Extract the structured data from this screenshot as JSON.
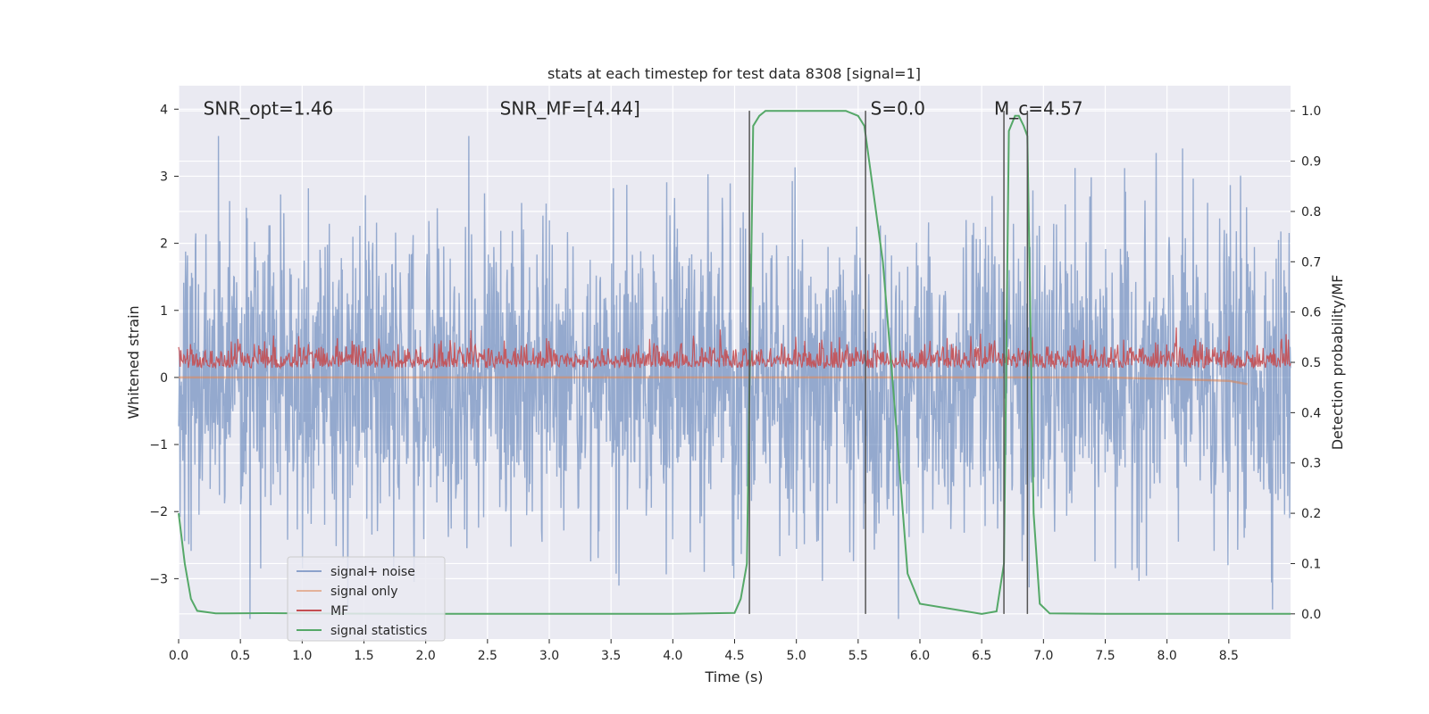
{
  "chart_data": {
    "type": "line",
    "title": "stats at each timestep for test data 8308 [signal=1]",
    "xlabel": "Time (s)",
    "ylabel_left": "Whitened strain",
    "ylabel_right": "Detection probability/MF",
    "xlim": [
      0.0,
      9.0
    ],
    "ylim_left": [
      -3.9,
      4.35
    ],
    "ylim_right": [
      -0.05,
      1.05
    ],
    "x_ticks": [
      0.0,
      0.5,
      1.0,
      1.5,
      2.0,
      2.5,
      3.0,
      3.5,
      4.0,
      4.5,
      5.0,
      5.5,
      6.0,
      6.5,
      7.0,
      7.5,
      8.0,
      8.5
    ],
    "x_tick_labels": [
      "0.0",
      "0.5",
      "1.0",
      "1.5",
      "2.0",
      "2.5",
      "3.0",
      "3.5",
      "4.0",
      "4.5",
      "5.0",
      "5.5",
      "6.0",
      "6.5",
      "7.0",
      "7.5",
      "8.0",
      "8.5"
    ],
    "y_left_ticks": [
      4,
      3,
      2,
      1,
      0,
      -1,
      -2,
      -3
    ],
    "y_left_tick_labels": [
      "4",
      "3",
      "2",
      "1",
      "0",
      "−1",
      "−2",
      "−3"
    ],
    "y_right_ticks": [
      1.0,
      0.9,
      0.8,
      0.7,
      0.6,
      0.5,
      0.4,
      0.3,
      0.2,
      0.1,
      0.0
    ],
    "y_right_tick_labels": [
      "1.0",
      "0.9",
      "0.8",
      "0.7",
      "0.6",
      "0.5",
      "0.4",
      "0.3",
      "0.2",
      "0.1",
      "0.0"
    ],
    "annotations": [
      {
        "text": "SNR_opt=1.46",
        "x": 0.2,
        "y": 4.0
      },
      {
        "text": "SNR_MF=[4.44]",
        "x": 2.6,
        "y": 4.0
      },
      {
        "text": "S=0.0",
        "x": 5.6,
        "y": 4.0
      },
      {
        "text": "M_c=4.57",
        "x": 6.6,
        "y": 4.0
      }
    ],
    "vertical_lines_x": [
      4.62,
      5.56,
      6.68,
      6.87
    ],
    "legend_location": "lower-left",
    "series": [
      {
        "name": "signal+ noise",
        "axis": "left",
        "color": "#4c72b0",
        "description_points": {
          "x_range": [
            0.0,
            9.0
          ],
          "approx_amplitude": 2.6
        }
      },
      {
        "name": "signal only",
        "axis": "left",
        "color": "#dd8452",
        "x": [
          0.0,
          2.0,
          4.0,
          5.0,
          6.0,
          7.0,
          7.5,
          8.0,
          8.5,
          8.65
        ],
        "y": [
          0.0,
          0.0,
          0.0,
          0.0,
          0.0,
          0.0,
          0.0,
          -0.02,
          -0.05,
          -0.1
        ]
      },
      {
        "name": "MF",
        "axis": "left",
        "color": "#c44e52",
        "baseline": 0.2,
        "approx_range": [
          0.0,
          0.85
        ]
      },
      {
        "name": "signal statistics",
        "axis": "right",
        "color": "#55a868",
        "x": [
          0.0,
          0.05,
          0.1,
          0.15,
          0.3,
          0.7,
          1.0,
          2.0,
          3.0,
          4.0,
          4.5,
          4.55,
          4.6,
          4.65,
          4.7,
          4.75,
          4.8,
          5.0,
          5.4,
          5.5,
          5.55,
          5.7,
          5.8,
          5.9,
          6.0,
          6.5,
          6.62,
          6.68,
          6.72,
          6.77,
          6.8,
          6.84,
          6.87,
          6.92,
          6.97,
          7.05,
          7.5,
          8.0,
          9.0
        ],
        "y": [
          0.2,
          0.1,
          0.03,
          0.006,
          0.001,
          0.0015,
          0.001,
          0.0,
          0.0,
          0.0,
          0.002,
          0.03,
          0.1,
          0.97,
          0.99,
          1.0,
          1.0,
          1.0,
          1.0,
          0.99,
          0.97,
          0.7,
          0.4,
          0.08,
          0.02,
          0.0,
          0.005,
          0.1,
          0.96,
          0.99,
          0.99,
          0.97,
          0.95,
          0.2,
          0.02,
          0.001,
          0.0,
          0.0,
          0.0
        ]
      }
    ]
  }
}
